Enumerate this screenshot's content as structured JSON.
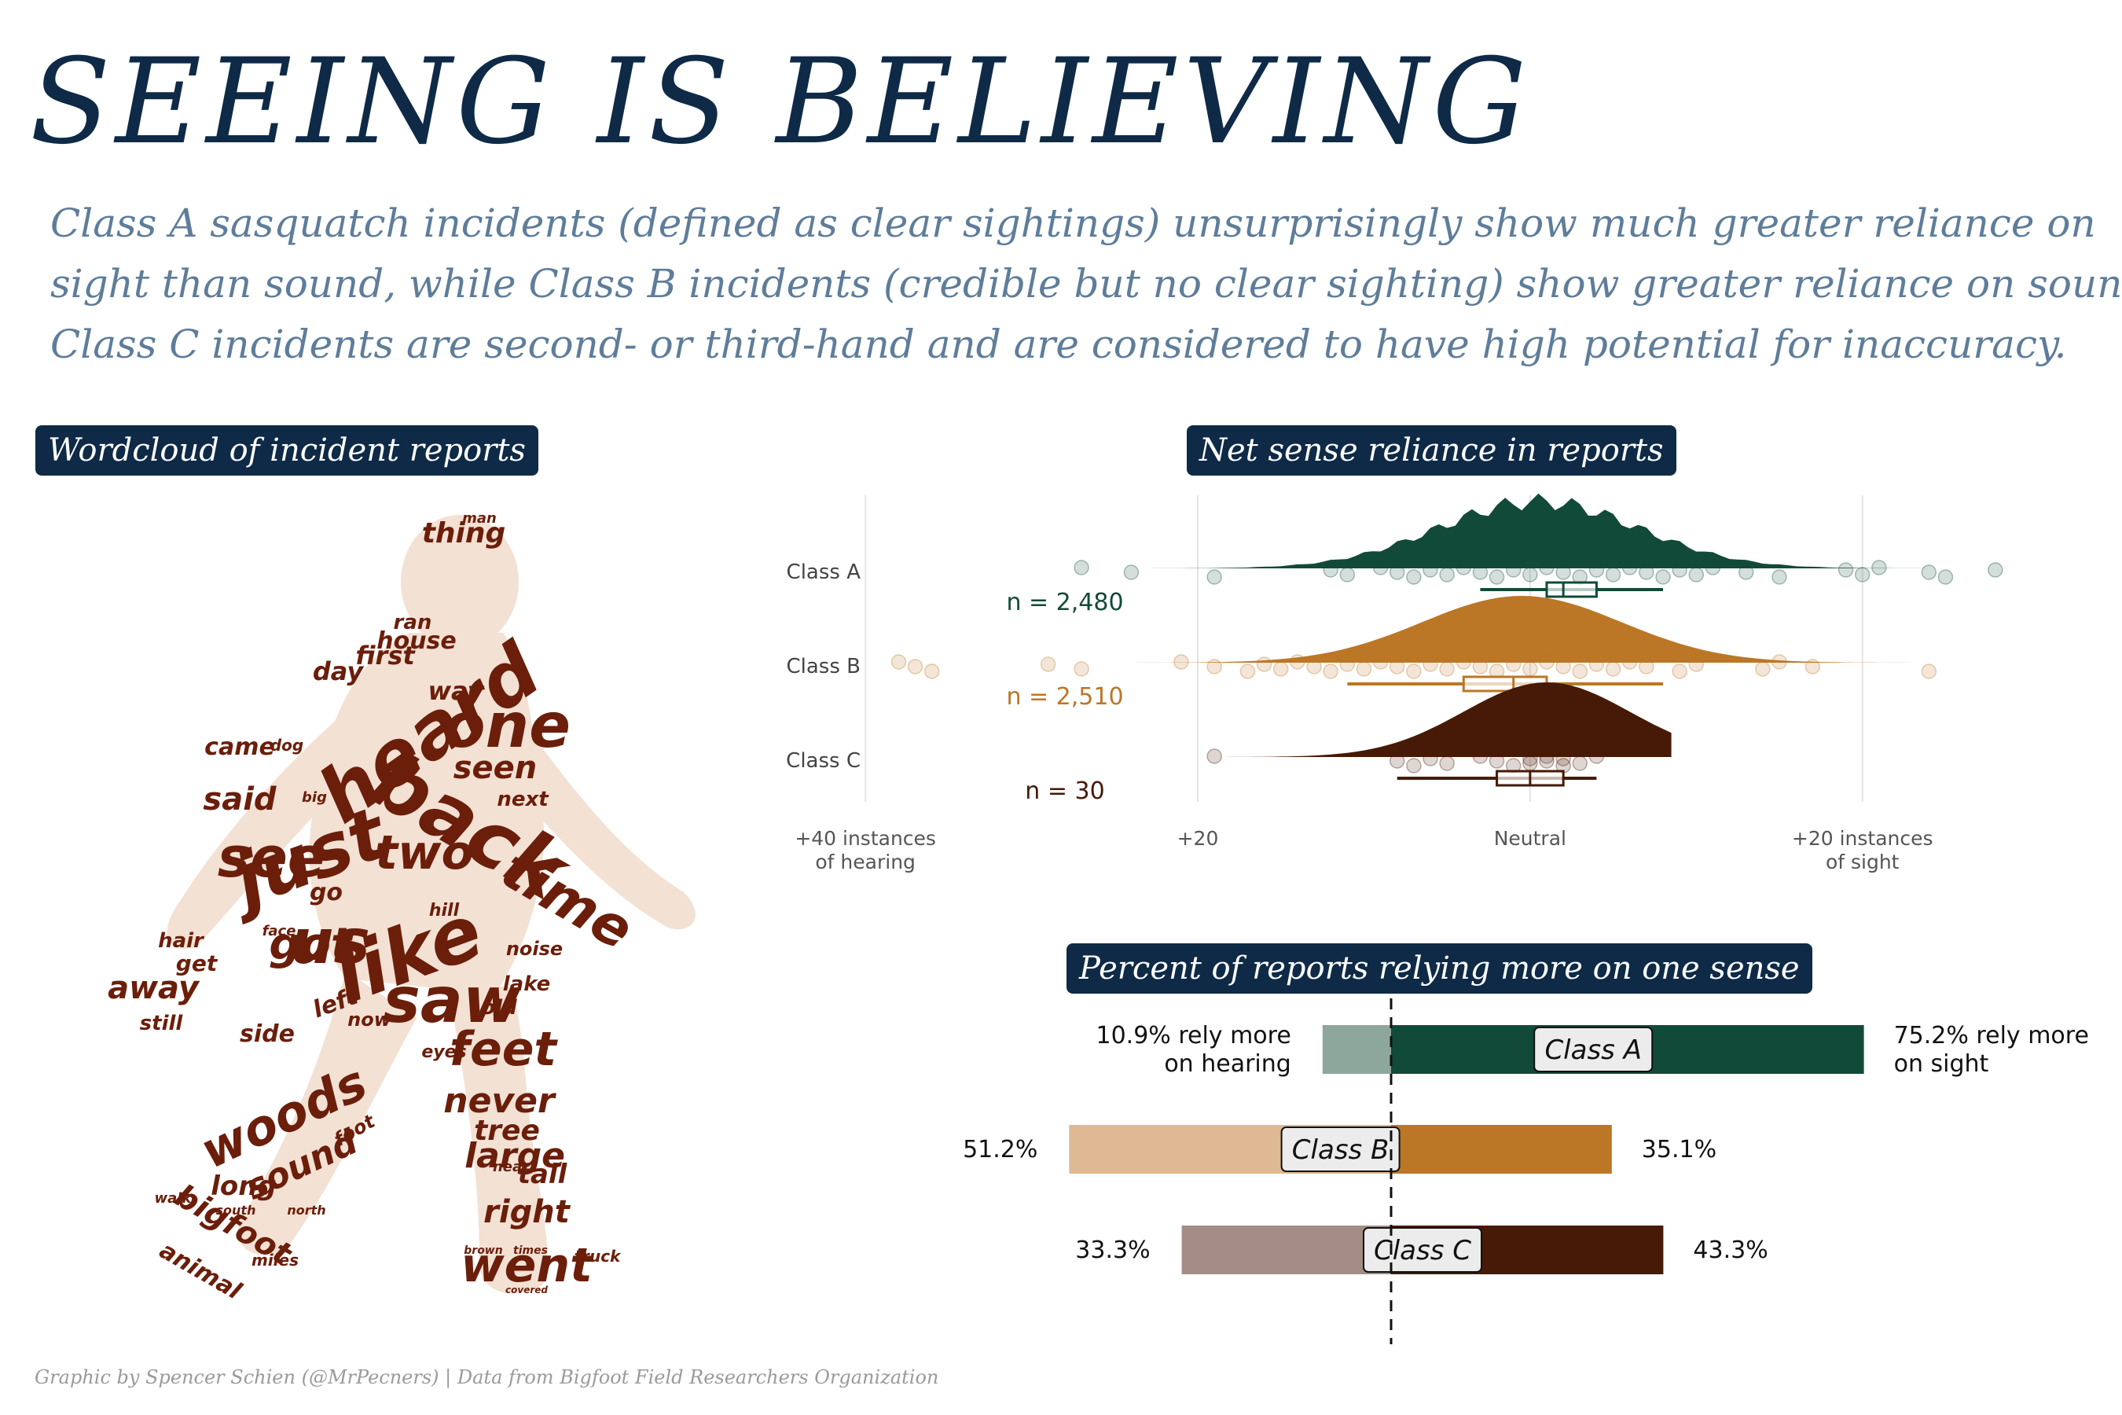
{
  "title": "SEEING IS BELIEVING",
  "subtitle_lines": [
    "Class A sasquatch incidents (defined as clear sightings) unsurprisingly show much greater reliance on",
    "sight than sound, while Class B incidents (credible but no clear sighting) show greater reliance on sound.",
    "Class C incidents are second- or third-hand and are considered to have high potential for inaccuracy."
  ],
  "panels": {
    "wordcloud": "Wordcloud of incident reports",
    "raincloud": "Net sense reliance in reports",
    "bars": "Percent of reports relying more on one sense"
  },
  "caption": "Graphic by Spencer Schien (@MrPecners) | Data from Bigfoot Field Researchers Organization",
  "colors": {
    "navy": "#0e2a47",
    "subtitle": "#5e7d9a",
    "class_a": "#124a3a",
    "class_a_light": "#8ea79c",
    "class_b": "#bb7726",
    "class_b_light": "#deb993",
    "class_c": "#461a06",
    "class_c_light": "#a38d84",
    "wordcloud": "#6b1e0a"
  },
  "wordcloud_words": [
    "heard",
    "back",
    "just",
    "like",
    "one",
    "time",
    "see",
    "saw",
    "two",
    "us",
    "woods",
    "feet",
    "went",
    "got",
    "said",
    "seen",
    "never",
    "sound",
    "bigfoot",
    "large",
    "right",
    "tree",
    "tall",
    "away",
    "long",
    "came",
    "thing",
    "house",
    "first",
    "day",
    "way",
    "go",
    "left",
    "side",
    "next",
    "still",
    "get",
    "animal",
    "hair",
    "now",
    "old",
    "eyes",
    "lake",
    "noise",
    "ran",
    "man",
    "dog",
    "big",
    "hill",
    "face",
    "near",
    "miles",
    "truck",
    "foot",
    "north",
    "south",
    "walk",
    "brown",
    "times",
    "covered"
  ],
  "chart_data": [
    {
      "type": "raincloud",
      "title": "Net sense reliance in reports",
      "categories": [
        "Class A",
        "Class B",
        "Class C"
      ],
      "x_ticks": [
        {
          "value": -40,
          "label": "+40 instances\nof hearing"
        },
        {
          "value": -20,
          "label": "+20"
        },
        {
          "value": 0,
          "label": "Neutral"
        },
        {
          "value": 20,
          "label": "+20 instances\nof sight"
        }
      ],
      "xlim": [
        -41,
        29
      ],
      "series": [
        {
          "name": "Class A",
          "n_label": "n = 2,480",
          "box": {
            "q1": 1,
            "median": 2,
            "q3": 4,
            "whisker_low": -3,
            "whisker_high": 8
          },
          "density_peak": 0.5,
          "points": [
            -27,
            -24,
            -19,
            -12,
            -11,
            -9,
            -8,
            -7,
            -6,
            -5,
            -4,
            -3,
            -2,
            -1,
            0,
            1,
            2,
            3,
            4,
            5,
            6,
            7,
            8,
            9,
            10,
            11,
            13,
            15,
            19,
            20,
            21,
            24,
            25,
            28
          ]
        },
        {
          "name": "Class B",
          "n_label": "n = 2,510",
          "box": {
            "q1": -4,
            "median": -1,
            "q3": 1,
            "whisker_low": -11,
            "whisker_high": 8
          },
          "density_peak": -0.5,
          "points": [
            -38,
            -37,
            -36,
            -29,
            -27,
            -21,
            -19,
            -17,
            -16,
            -15,
            -14,
            -13,
            -12,
            -11,
            -10,
            -9,
            -8,
            -7,
            -6,
            -5,
            -4,
            -3,
            -2,
            -1,
            0,
            1,
            2,
            3,
            4,
            5,
            6,
            7,
            9,
            10,
            14,
            15,
            17,
            24
          ]
        },
        {
          "name": "Class C",
          "n_label": "n = 30",
          "box": {
            "q1": -2,
            "median": 0,
            "q3": 2,
            "whisker_low": -8,
            "whisker_high": 4
          },
          "density_peak": 1,
          "points": [
            -19,
            -8,
            -7,
            -6,
            -5,
            -3,
            -2,
            -1,
            0,
            0,
            1,
            1,
            2,
            2,
            3,
            4
          ]
        }
      ]
    },
    {
      "type": "bar",
      "title": "Percent of reports relying more on one sense",
      "categories": [
        "Class A",
        "Class B",
        "Class C"
      ],
      "series": [
        {
          "name": "hearing",
          "values": [
            10.9,
            51.2,
            33.3
          ]
        },
        {
          "name": "sight",
          "values": [
            75.2,
            35.1,
            43.3
          ]
        }
      ],
      "left_labels": [
        "10.9% rely more\non hearing",
        "51.2%",
        "33.3%"
      ],
      "right_labels": [
        "75.2% rely more\non sight",
        "35.1%",
        "43.3%"
      ]
    }
  ]
}
